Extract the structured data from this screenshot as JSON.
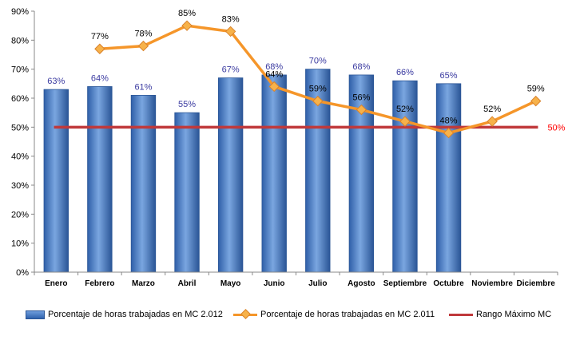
{
  "chart_data": {
    "type": "bar",
    "categories": [
      "Enero",
      "Febrero",
      "Marzo",
      "Abril",
      "Mayo",
      "Junio",
      "Julio",
      "Agosto",
      "Septiembre",
      "Octubre",
      "Noviembre",
      "Diciembre"
    ],
    "ylim": [
      0,
      90
    ],
    "y_ticks": [
      "0%",
      "10%",
      "20%",
      "30%",
      "40%",
      "50%",
      "60%",
      "70%",
      "80%",
      "90%"
    ],
    "y_unit": "%",
    "grid": false,
    "legend_position": "bottom",
    "series": [
      {
        "name": "Porcentaje de horas trabajadas en MC 2.012",
        "kind": "bar",
        "color": "#3a6fbf",
        "label_color": "#3a3aa0",
        "values": [
          63,
          64,
          61,
          55,
          67,
          68,
          70,
          68,
          66,
          65,
          null,
          null
        ],
        "labels": [
          "63%",
          "64%",
          "61%",
          "55%",
          "67%",
          "68%",
          "70%",
          "68%",
          "66%",
          "65%",
          "",
          ""
        ]
      },
      {
        "name": "Porcentaje de horas trabajadas en MC 2.011",
        "kind": "line",
        "color": "#f5962a",
        "marker_color": "#f7b24a",
        "label_color": "#000000",
        "values": [
          null,
          77,
          78,
          85,
          83,
          64,
          59,
          56,
          52,
          48,
          52,
          59
        ],
        "labels": [
          "",
          "77%",
          "78%",
          "85%",
          "83%",
          "64%",
          "59%",
          "56%",
          "52%",
          "48%",
          "52%",
          "59%"
        ]
      },
      {
        "name": "Rango Máximo MC",
        "kind": "line",
        "color": "#c0393b",
        "label_color": "#ff0000",
        "value": 50,
        "label": "50%"
      }
    ]
  }
}
